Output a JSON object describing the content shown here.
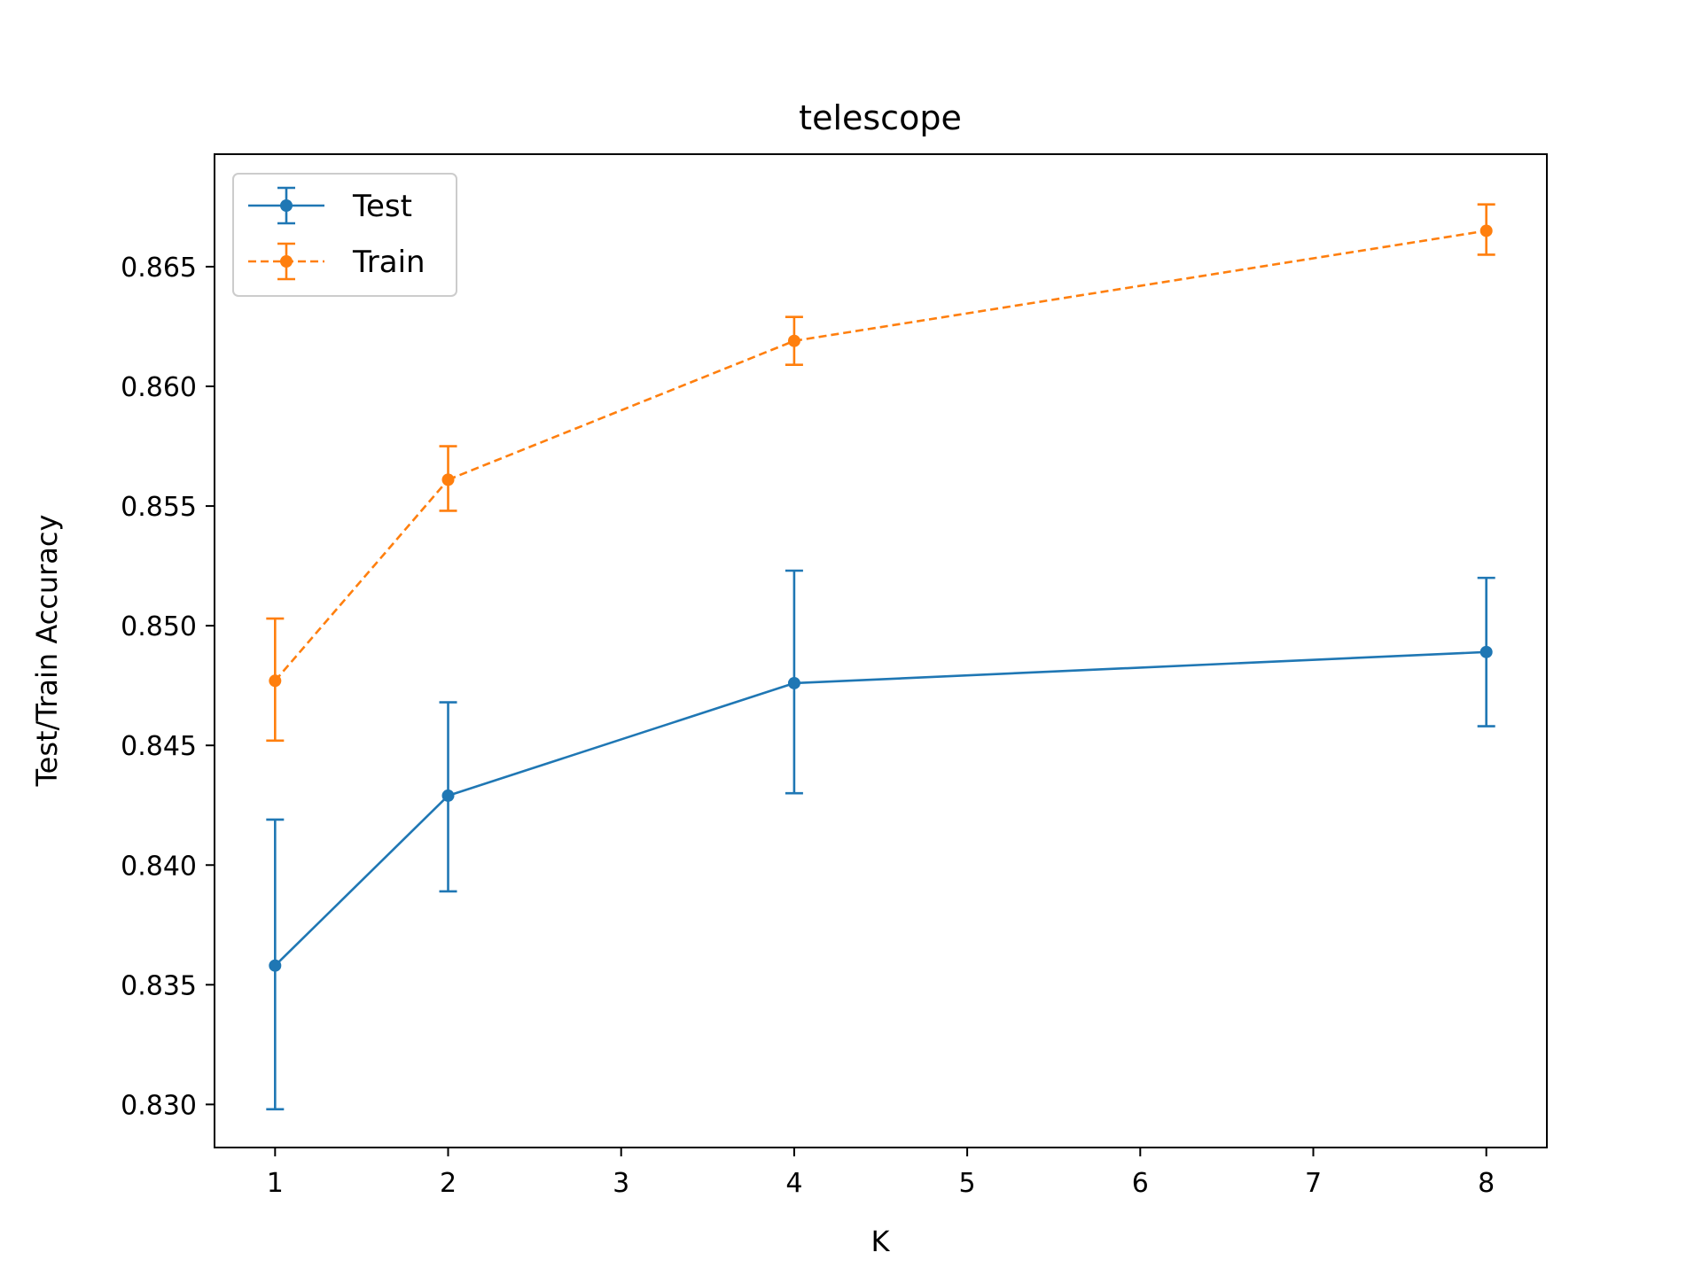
{
  "chart_data": {
    "type": "line",
    "title": "telescope",
    "xlabel": "K",
    "ylabel": "Test/Train Accuracy",
    "xlim": [
      0.65,
      8.35
    ],
    "ylim": [
      0.8282,
      0.8697
    ],
    "xticks": [
      1,
      2,
      3,
      4,
      5,
      6,
      7,
      8
    ],
    "xtick_labels": [
      "1",
      "2",
      "3",
      "4",
      "5",
      "6",
      "7",
      "8"
    ],
    "yticks": [
      0.83,
      0.835,
      0.84,
      0.845,
      0.85,
      0.855,
      0.86,
      0.865
    ],
    "ytick_labels": [
      "0.830",
      "0.835",
      "0.840",
      "0.845",
      "0.850",
      "0.855",
      "0.860",
      "0.865"
    ],
    "grid": false,
    "legend_position": "upper-left",
    "series": [
      {
        "name": "Test",
        "color": "#1f77b4",
        "linestyle": "solid",
        "x": [
          1,
          2,
          4,
          8
        ],
        "y": [
          0.8358,
          0.8429,
          0.8476,
          0.8489
        ],
        "err_low": [
          0.8298,
          0.8389,
          0.843,
          0.8458
        ],
        "err_high": [
          0.8419,
          0.8468,
          0.8523,
          0.852
        ]
      },
      {
        "name": "Train",
        "color": "#ff7f0e",
        "linestyle": "dashed",
        "x": [
          1,
          2,
          4,
          8
        ],
        "y": [
          0.8477,
          0.8561,
          0.8619,
          0.8665
        ],
        "err_low": [
          0.8452,
          0.8548,
          0.8609,
          0.8655
        ],
        "err_high": [
          0.8503,
          0.8575,
          0.8629,
          0.8676
        ]
      }
    ]
  }
}
